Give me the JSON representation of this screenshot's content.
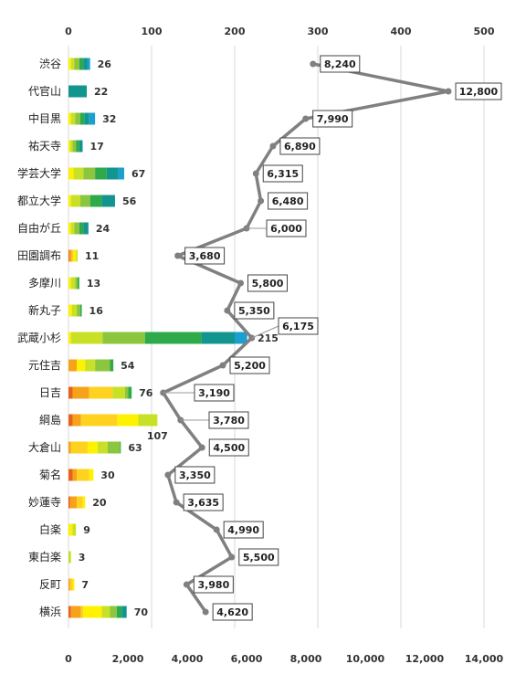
{
  "chart_data": {
    "type": "bar",
    "categories": [
      "渋谷",
      "代官山",
      "中目黒",
      "祐天寺",
      "学芸大学",
      "都立大学",
      "自由が丘",
      "田園調布",
      "多摩川",
      "新丸子",
      "武蔵小杉",
      "元住吉",
      "日吉",
      "綱島",
      "大倉山",
      "菊名",
      "妙蓮寺",
      "白楽",
      "東白楽",
      "反町",
      "横浜"
    ],
    "bars": {
      "totals": [
        26,
        22,
        32,
        17,
        67,
        56,
        24,
        11,
        13,
        16,
        215,
        54,
        76,
        107,
        63,
        30,
        20,
        9,
        3,
        7,
        70
      ],
      "stack_colors": [
        "#e8611a",
        "#f7a21b",
        "#ffd21f",
        "#fff200",
        "#c8e026",
        "#8cc63e",
        "#2eaa4a",
        "#13958f",
        "#1a9fce"
      ],
      "segments": [
        [
          0,
          0,
          0,
          3,
          4,
          6,
          5,
          5,
          3
        ],
        [
          0,
          0,
          0,
          0,
          0,
          0,
          0,
          22,
          0
        ],
        [
          0,
          0,
          0,
          3,
          5,
          6,
          5,
          6,
          7
        ],
        [
          0,
          0,
          0,
          2,
          3,
          4,
          4,
          4,
          0
        ],
        [
          0,
          0,
          0,
          6,
          12,
          14,
          14,
          14,
          7
        ],
        [
          0,
          0,
          0,
          3,
          11,
          12,
          14,
          16,
          0
        ],
        [
          0,
          0,
          0,
          3,
          4,
          6,
          5,
          6,
          0
        ],
        [
          1,
          3,
          2,
          3,
          2,
          0,
          0,
          0,
          0
        ],
        [
          0,
          0,
          0,
          3,
          5,
          3,
          2,
          0,
          0
        ],
        [
          0,
          0,
          0,
          4,
          6,
          4,
          2,
          0,
          0
        ],
        [
          0,
          0,
          0,
          3,
          38,
          51,
          68,
          40,
          15
        ],
        [
          0,
          10,
          0,
          10,
          12,
          18,
          4,
          0,
          0
        ],
        [
          5,
          20,
          28,
          0,
          15,
          4,
          4,
          0,
          0
        ],
        [
          5,
          10,
          44,
          25,
          23,
          0,
          0,
          0,
          0
        ],
        [
          0,
          3,
          20,
          12,
          12,
          15,
          1,
          0,
          0
        ],
        [
          5,
          5,
          15,
          5,
          0,
          0,
          0,
          0,
          0
        ],
        [
          2,
          8,
          7,
          3,
          0,
          0,
          0,
          0,
          0
        ],
        [
          0,
          0,
          0,
          5,
          4,
          0,
          0,
          0,
          0
        ],
        [
          0,
          0,
          0,
          0,
          3,
          0,
          0,
          0,
          0
        ],
        [
          0,
          2,
          3,
          2,
          0,
          0,
          0,
          0,
          0
        ],
        [
          3,
          12,
          3,
          22,
          10,
          8,
          6,
          6,
          0
        ]
      ]
    },
    "line": {
      "values": [
        8240,
        12800,
        7990,
        6890,
        6315,
        6480,
        6000,
        3680,
        5800,
        5350,
        6175,
        5200,
        3190,
        3780,
        4500,
        3350,
        3635,
        4990,
        5500,
        3980,
        4620
      ],
      "labels": [
        "8,240",
        "12,800",
        "7,990",
        "6,890",
        "6,315",
        "6,480",
        "6,000",
        "3,680",
        "5,800",
        "5,350",
        "6,175",
        "5,200",
        "3,190",
        "3,780",
        "4,500",
        "3,350",
        "3,635",
        "4,990",
        "5,500",
        "3,980",
        "4,620"
      ],
      "color": "#808080"
    },
    "top_axis": {
      "min": 0,
      "max": 500,
      "ticks": [
        "0",
        "100",
        "200",
        "300",
        "400",
        "500"
      ]
    },
    "bottom_axis": {
      "min": 0,
      "max": 14000,
      "ticks": [
        "0",
        "2,000",
        "4,000",
        "6,000",
        "8,000",
        "10,000",
        "12,000",
        "14,000"
      ]
    },
    "grid": true,
    "legend": "none"
  }
}
